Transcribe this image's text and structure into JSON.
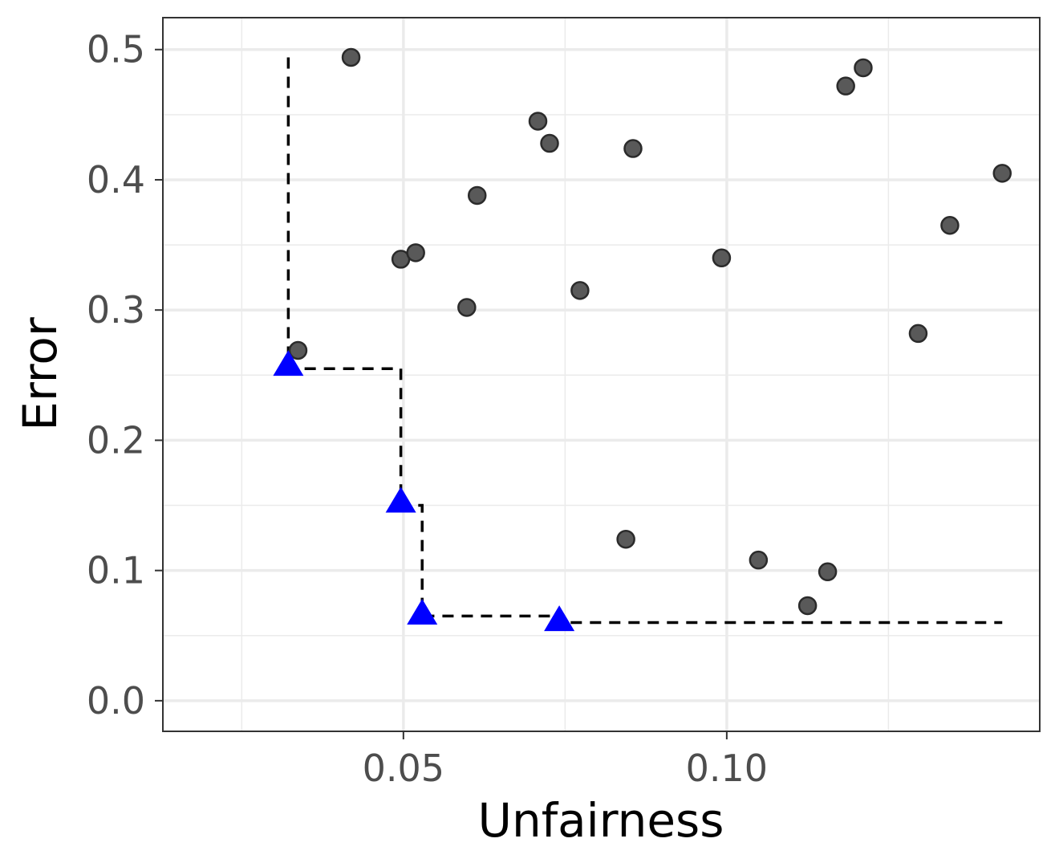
{
  "chart_data": {
    "type": "scatter",
    "xlabel": "Unfairness",
    "ylabel": "Error",
    "xlim": [
      0.0128,
      0.1484
    ],
    "ylim": [
      -0.0235,
      0.5245
    ],
    "x_major_ticks": [
      0.05,
      0.1
    ],
    "x_tick_labels": [
      "0.05",
      "0.10"
    ],
    "x_minor_ticks": [
      0.025,
      0.075,
      0.125
    ],
    "y_major_ticks": [
      0.0,
      0.1,
      0.2,
      0.3,
      0.4,
      0.5
    ],
    "y_tick_labels": [
      "0.0",
      "0.1",
      "0.2",
      "0.3",
      "0.4",
      "0.5"
    ],
    "y_minor_ticks": [
      0.05,
      0.15,
      0.25,
      0.35,
      0.45
    ],
    "grid": true,
    "series": [
      {
        "marker": "circle",
        "color": "#595959",
        "points": [
          {
            "x": 0.0419,
            "y": 0.494
          },
          {
            "x": 0.0708,
            "y": 0.445
          },
          {
            "x": 0.0726,
            "y": 0.428
          },
          {
            "x": 0.0855,
            "y": 0.424
          },
          {
            "x": 0.0614,
            "y": 0.388
          },
          {
            "x": 0.0496,
            "y": 0.339
          },
          {
            "x": 0.0519,
            "y": 0.344
          },
          {
            "x": 0.0598,
            "y": 0.302
          },
          {
            "x": 0.0773,
            "y": 0.315
          },
          {
            "x": 0.0992,
            "y": 0.34
          },
          {
            "x": 0.0337,
            "y": 0.269
          },
          {
            "x": 0.1184,
            "y": 0.472
          },
          {
            "x": 0.1211,
            "y": 0.486
          },
          {
            "x": 0.1426,
            "y": 0.405
          },
          {
            "x": 0.1345,
            "y": 0.365
          },
          {
            "x": 0.1296,
            "y": 0.282
          },
          {
            "x": 0.0844,
            "y": 0.124
          },
          {
            "x": 0.1049,
            "y": 0.108
          },
          {
            "x": 0.1156,
            "y": 0.099
          },
          {
            "x": 0.1125,
            "y": 0.073
          }
        ]
      },
      {
        "marker": "triangle",
        "color": "#0000ff",
        "points": [
          {
            "x": 0.0322,
            "y": 0.257
          },
          {
            "x": 0.0496,
            "y": 0.152
          },
          {
            "x": 0.0529,
            "y": 0.066
          },
          {
            "x": 0.0741,
            "y": 0.061
          }
        ]
      }
    ],
    "frontier_line": {
      "style": "dashed",
      "color": "#000000",
      "points": [
        [
          0.0322,
          0.494
        ],
        [
          0.0322,
          0.255
        ],
        [
          0.0496,
          0.255
        ],
        [
          0.0496,
          0.15
        ],
        [
          0.0529,
          0.15
        ],
        [
          0.0529,
          0.065
        ],
        [
          0.0741,
          0.065
        ],
        [
          0.0741,
          0.06
        ],
        [
          0.1426,
          0.06
        ]
      ]
    }
  }
}
